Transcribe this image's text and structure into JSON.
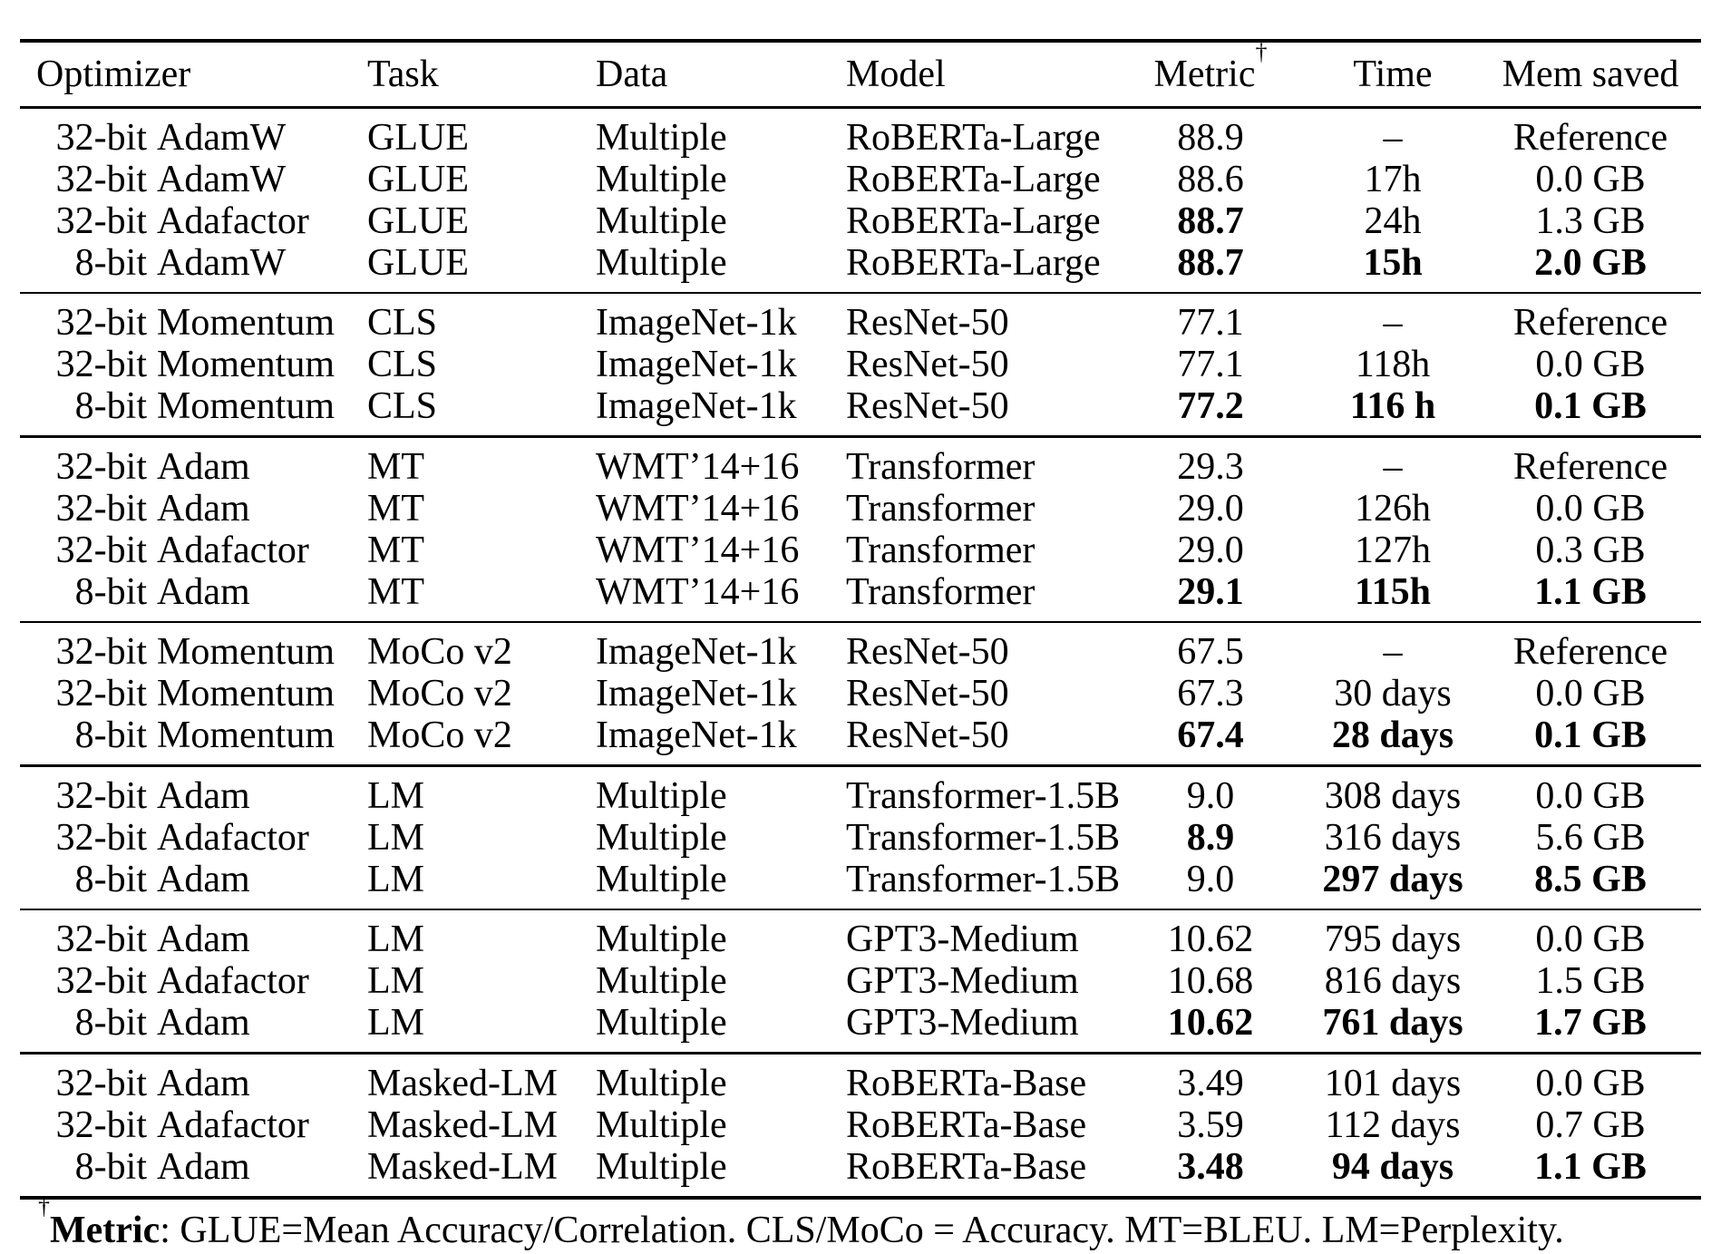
{
  "table": {
    "columns": [
      {
        "key": "optimizer",
        "label": "Optimizer",
        "align": "left"
      },
      {
        "key": "task",
        "label": "Task",
        "align": "left"
      },
      {
        "key": "data",
        "label": "Data",
        "align": "left"
      },
      {
        "key": "model",
        "label": "Model",
        "align": "left"
      },
      {
        "key": "metric",
        "label": "Metric",
        "sup": "†",
        "align": "center"
      },
      {
        "key": "time",
        "label": "Time",
        "align": "center"
      },
      {
        "key": "mem",
        "label": "Mem saved",
        "align": "center"
      }
    ],
    "blocks": [
      {
        "rows": [
          {
            "optimizer": "32-bit AdamW",
            "task": "GLUE",
            "data": "Multiple",
            "model": "RoBERTa-Large",
            "metric": "88.9",
            "time": "–",
            "mem": "Reference",
            "bold": []
          },
          {
            "optimizer": "32-bit AdamW",
            "task": "GLUE",
            "data": "Multiple",
            "model": "RoBERTa-Large",
            "metric": "88.6",
            "time": "17h",
            "mem": "0.0 GB",
            "bold": []
          },
          {
            "optimizer": "32-bit Adafactor",
            "task": "GLUE",
            "data": "Multiple",
            "model": "RoBERTa-Large",
            "metric": "88.7",
            "time": "24h",
            "mem": "1.3 GB",
            "bold": [
              "metric"
            ]
          },
          {
            "optimizer": "8-bit AdamW",
            "task": "GLUE",
            "data": "Multiple",
            "model": "RoBERTa-Large",
            "metric": "88.7",
            "time": "15h",
            "mem": "2.0 GB",
            "bold": [
              "metric",
              "time",
              "mem"
            ]
          }
        ]
      },
      {
        "rows": [
          {
            "optimizer": "32-bit Momentum",
            "task": "CLS",
            "data": "ImageNet-1k",
            "model": "ResNet-50",
            "metric": "77.1",
            "time": "–",
            "mem": "Reference",
            "bold": []
          },
          {
            "optimizer": "32-bit Momentum",
            "task": "CLS",
            "data": "ImageNet-1k",
            "model": "ResNet-50",
            "metric": "77.1",
            "time": "118h",
            "mem": "0.0 GB",
            "bold": []
          },
          {
            "optimizer": "8-bit Momentum",
            "task": "CLS",
            "data": "ImageNet-1k",
            "model": "ResNet-50",
            "metric": "77.2",
            "time": "116 h",
            "mem": "0.1 GB",
            "bold": [
              "metric",
              "time",
              "mem"
            ]
          }
        ]
      },
      {
        "rows": [
          {
            "optimizer": "32-bit Adam",
            "task": "MT",
            "data": "WMT’14+16",
            "model": "Transformer",
            "metric": "29.3",
            "time": "–",
            "mem": "Reference",
            "bold": []
          },
          {
            "optimizer": "32-bit Adam",
            "task": "MT",
            "data": "WMT’14+16",
            "model": "Transformer",
            "metric": "29.0",
            "time": "126h",
            "mem": "0.0 GB",
            "bold": []
          },
          {
            "optimizer": "32-bit Adafactor",
            "task": "MT",
            "data": "WMT’14+16",
            "model": "Transformer",
            "metric": "29.0",
            "time": "127h",
            "mem": "0.3 GB",
            "bold": []
          },
          {
            "optimizer": "8-bit Adam",
            "task": "MT",
            "data": "WMT’14+16",
            "model": "Transformer",
            "metric": "29.1",
            "time": "115h",
            "mem": "1.1 GB",
            "bold": [
              "metric",
              "time",
              "mem"
            ]
          }
        ]
      },
      {
        "rows": [
          {
            "optimizer": "32-bit Momentum",
            "task": "MoCo v2",
            "data": "ImageNet-1k",
            "model": "ResNet-50",
            "metric": "67.5",
            "time": "–",
            "mem": "Reference",
            "bold": []
          },
          {
            "optimizer": "32-bit Momentum",
            "task": "MoCo v2",
            "data": "ImageNet-1k",
            "model": "ResNet-50",
            "metric": "67.3",
            "time": "30 days",
            "mem": "0.0 GB",
            "bold": []
          },
          {
            "optimizer": "8-bit Momentum",
            "task": "MoCo v2",
            "data": "ImageNet-1k",
            "model": "ResNet-50",
            "metric": "67.4",
            "time": "28 days",
            "mem": "0.1 GB",
            "bold": [
              "metric",
              "time",
              "mem"
            ]
          }
        ]
      },
      {
        "rows": [
          {
            "optimizer": "32-bit Adam",
            "task": "LM",
            "data": "Multiple",
            "model": "Transformer-1.5B",
            "metric": "9.0",
            "time": "308 days",
            "mem": "0.0 GB",
            "bold": []
          },
          {
            "optimizer": "32-bit Adafactor",
            "task": "LM",
            "data": "Multiple",
            "model": "Transformer-1.5B",
            "metric": "8.9",
            "time": "316 days",
            "mem": "5.6 GB",
            "bold": [
              "metric"
            ]
          },
          {
            "optimizer": "8-bit Adam",
            "task": "LM",
            "data": "Multiple",
            "model": "Transformer-1.5B",
            "metric": "9.0",
            "time": "297 days",
            "mem": "8.5 GB",
            "bold": [
              "time",
              "mem"
            ]
          }
        ]
      },
      {
        "rows": [
          {
            "optimizer": "32-bit Adam",
            "task": "LM",
            "data": "Multiple",
            "model": "GPT3-Medium",
            "metric": "10.62",
            "time": "795 days",
            "mem": "0.0 GB",
            "bold": []
          },
          {
            "optimizer": "32-bit Adafactor",
            "task": "LM",
            "data": "Multiple",
            "model": "GPT3-Medium",
            "metric": "10.68",
            "time": "816 days",
            "mem": "1.5 GB",
            "bold": []
          },
          {
            "optimizer": "8-bit Adam",
            "task": "LM",
            "data": "Multiple",
            "model": "GPT3-Medium",
            "metric": "10.62",
            "time": "761 days",
            "mem": "1.7 GB",
            "bold": [
              "metric",
              "time",
              "mem"
            ]
          }
        ]
      },
      {
        "rows": [
          {
            "optimizer": "32-bit Adam",
            "task": "Masked-LM",
            "data": "Multiple",
            "model": "RoBERTa-Base",
            "metric": "3.49",
            "time": "101 days",
            "mem": "0.0 GB",
            "bold": []
          },
          {
            "optimizer": "32-bit Adafactor",
            "task": "Masked-LM",
            "data": "Multiple",
            "model": "RoBERTa-Base",
            "metric": "3.59",
            "time": "112 days",
            "mem": "0.7 GB",
            "bold": []
          },
          {
            "optimizer": "8-bit Adam",
            "task": "Masked-LM",
            "data": "Multiple",
            "model": "RoBERTa-Base",
            "metric": "3.48",
            "time": "94 days",
            "mem": "1.1 GB",
            "bold": [
              "metric",
              "time",
              "mem"
            ]
          }
        ]
      }
    ]
  },
  "footnote": {
    "dagger": "†",
    "label": "Metric",
    "text": ": GLUE=Mean Accuracy/Correlation. CLS/MoCo = Accuracy. MT=BLEU. LM=Perplexity."
  }
}
